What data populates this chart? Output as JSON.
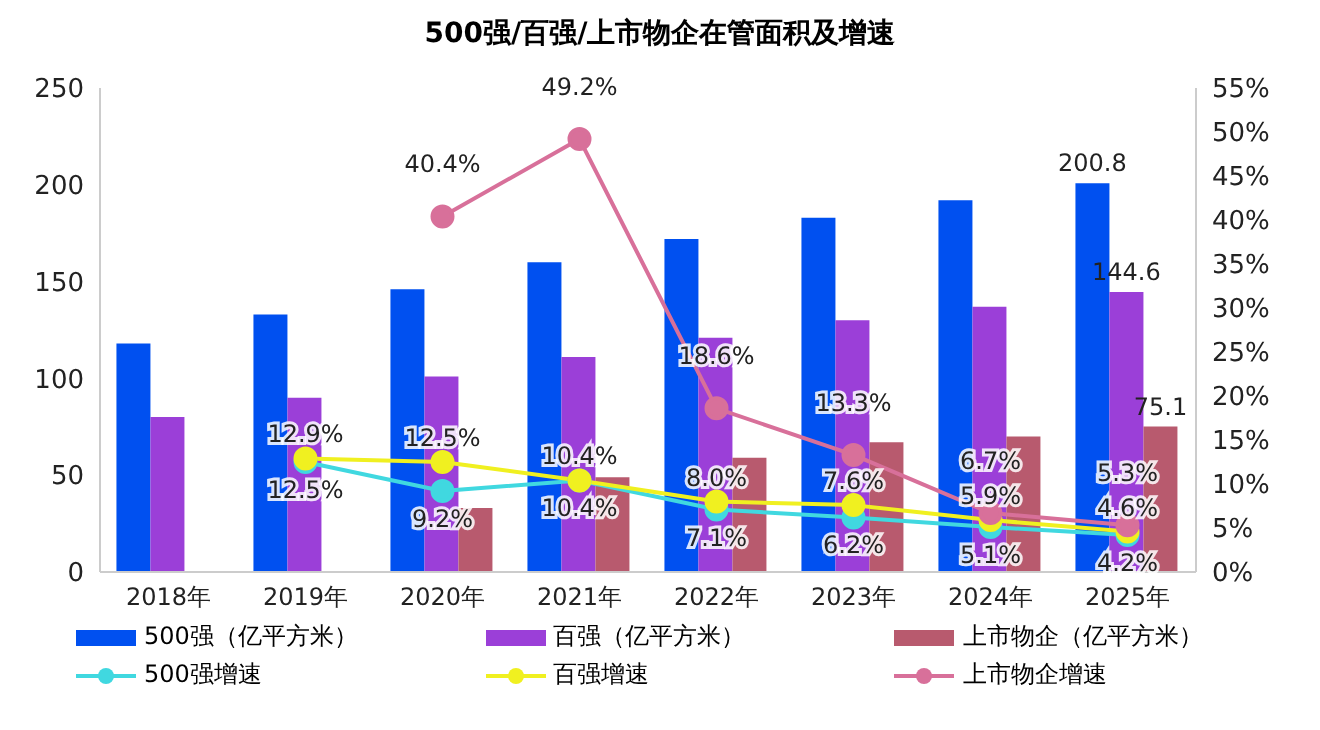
{
  "chart_data": {
    "type": "bar",
    "title": "500强/百强/上市物企在管面积及增速",
    "categories": [
      "2018年",
      "2019年",
      "2020年",
      "2021年",
      "2022年",
      "2023年",
      "2024年",
      "2025年"
    ],
    "series": [
      {
        "name": "500强（亿平方米）",
        "color": "#0050f0",
        "values": [
          118,
          133,
          146,
          160,
          172,
          183,
          192,
          200.8
        ],
        "value_labels": [
          null,
          null,
          null,
          null,
          null,
          null,
          null,
          "200.8"
        ]
      },
      {
        "name": "百强（亿平方米）",
        "color": "#9b3fd8",
        "values": [
          80,
          90,
          101,
          111,
          121,
          130,
          137,
          144.6
        ],
        "value_labels": [
          null,
          null,
          null,
          null,
          null,
          null,
          null,
          "144.6"
        ]
      },
      {
        "name": "上市物企（亿平方米）",
        "color": "#b85a6e",
        "values": [
          null,
          null,
          33,
          49,
          59,
          67,
          70,
          75.1
        ],
        "value_labels": [
          null,
          null,
          null,
          null,
          null,
          null,
          null,
          "75.1"
        ]
      },
      {
        "name": "500强增速",
        "type": "line",
        "axis": "y2",
        "color": "#40d8e0",
        "values": [
          null,
          12.5,
          9.2,
          10.4,
          7.1,
          6.2,
          5.1,
          4.2
        ],
        "value_labels": [
          null,
          "12.5%",
          "9.2%",
          "10.4%",
          "7.1%",
          "6.2%",
          "5.1%",
          "4.2%"
        ]
      },
      {
        "name": "百强增速",
        "type": "line",
        "axis": "y2",
        "color": "#f0f020",
        "values": [
          null,
          12.9,
          12.5,
          10.4,
          8.0,
          7.6,
          5.9,
          4.6
        ],
        "value_labels": [
          null,
          "12.9%",
          "12.5%",
          "10.4%",
          "8.0%",
          "7.6%",
          "5.9%",
          "4.6%"
        ]
      },
      {
        "name": "上市物企增速",
        "type": "line",
        "axis": "y2",
        "color": "#d8709a",
        "values": [
          null,
          null,
          40.4,
          49.2,
          18.6,
          13.3,
          6.7,
          5.3
        ],
        "value_labels": [
          null,
          null,
          "40.4%",
          "49.2%",
          "18.6%",
          "13.3%",
          "6.7%",
          "5.3%"
        ]
      }
    ],
    "ylim": [
      0,
      250
    ],
    "yticks": [
      0,
      50,
      100,
      150,
      200,
      250
    ],
    "y2lim": [
      0,
      55
    ],
    "y2ticks": [
      {
        "value": 0,
        "label": "0%"
      },
      {
        "value": 5,
        "label": "5%"
      },
      {
        "value": 10,
        "label": "10%"
      },
      {
        "value": 15,
        "label": "15%"
      },
      {
        "value": 20,
        "label": "20%"
      },
      {
        "value": 25,
        "label": "25%"
      },
      {
        "value": 30,
        "label": "30%"
      },
      {
        "value": 35,
        "label": "35%"
      },
      {
        "value": 40,
        "label": "40%"
      },
      {
        "value": 45,
        "label": "45%"
      },
      {
        "value": 50,
        "label": "50%"
      },
      {
        "value": 55,
        "label": "55%"
      }
    ],
    "legend": "bottom",
    "marker": "circle",
    "grid": false
  }
}
